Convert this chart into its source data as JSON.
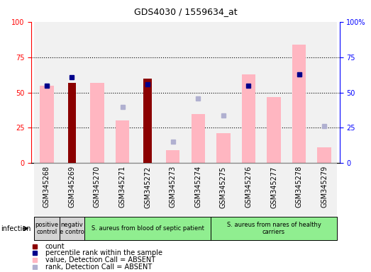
{
  "title": "GDS4030 / 1559634_at",
  "samples": [
    "GSM345268",
    "GSM345269",
    "GSM345270",
    "GSM345271",
    "GSM345272",
    "GSM345273",
    "GSM345274",
    "GSM345275",
    "GSM345276",
    "GSM345277",
    "GSM345278",
    "GSM345279"
  ],
  "count_values": [
    0,
    57,
    0,
    0,
    60,
    0,
    0,
    0,
    0,
    0,
    0,
    0
  ],
  "rank_present": [
    55,
    61,
    0,
    0,
    56,
    0,
    0,
    0,
    55,
    0,
    63,
    0
  ],
  "value_absent": [
    55,
    0,
    57,
    30,
    0,
    9,
    35,
    21,
    63,
    47,
    84,
    11
  ],
  "rank_absent": [
    55,
    0,
    0,
    40,
    55,
    15,
    46,
    34,
    0,
    0,
    63,
    26
  ],
  "groups": [
    {
      "label": "positive\ncontrol",
      "start": 0,
      "end": 1,
      "color": "#d3d3d3"
    },
    {
      "label": "negativ\ne contro",
      "start": 1,
      "end": 2,
      "color": "#d3d3d3"
    },
    {
      "label": "S. aureus from blood of septic patient",
      "start": 2,
      "end": 7,
      "color": "#90EE90"
    },
    {
      "label": "S. aureus from nares of healthy\ncarriers",
      "start": 7,
      "end": 12,
      "color": "#90EE90"
    }
  ],
  "ylim_left": [
    0,
    100
  ],
  "ylim_right": [
    0,
    100
  ],
  "yticks": [
    0,
    25,
    50,
    75,
    100
  ],
  "legend_items": [
    {
      "color": "#8B0000",
      "label": "count"
    },
    {
      "color": "#00008B",
      "label": "percentile rank within the sample"
    },
    {
      "color": "#FFB6C1",
      "label": "value, Detection Call = ABSENT"
    },
    {
      "color": "#b0b0d0",
      "label": "rank, Detection Call = ABSENT"
    }
  ],
  "fig_width": 5.23,
  "fig_height": 3.84,
  "dpi": 100,
  "title_fontsize": 9,
  "axis_label_fontsize": 7,
  "tick_fontsize": 7,
  "group_fontsize": 6,
  "legend_fontsize": 7,
  "dark_red": "#8B0000",
  "dark_blue": "#00008B",
  "light_pink": "#FFB6C1",
  "light_blue_gray": "#b0b0d0",
  "col_bg_color": "#e8e8e8",
  "green_group": "#90EE90",
  "gray_group": "#d3d3d3"
}
